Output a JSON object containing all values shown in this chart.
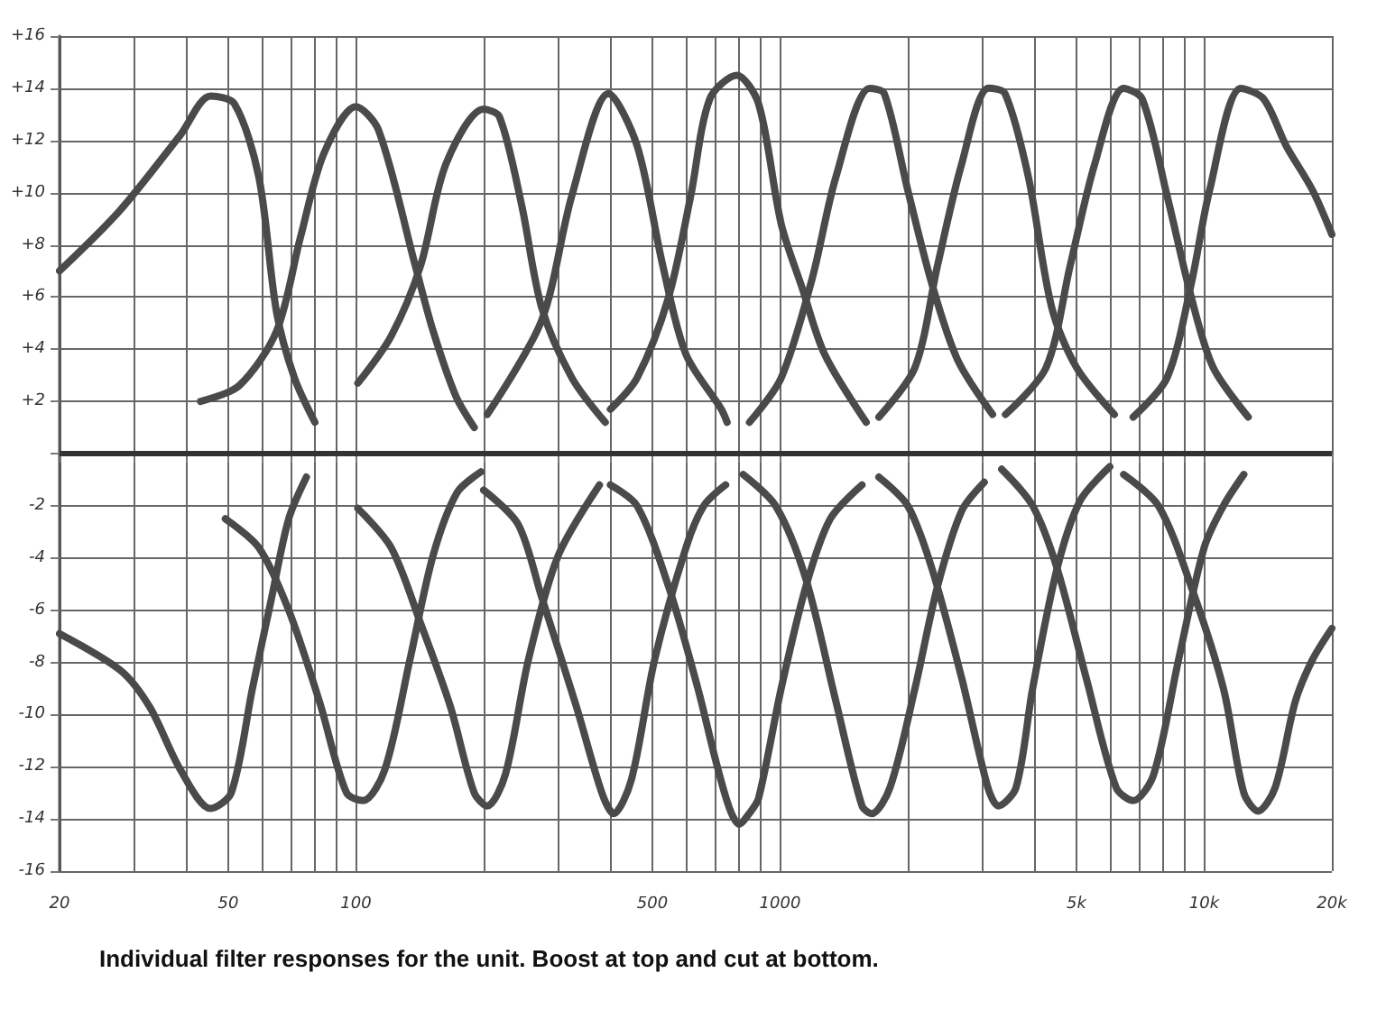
{
  "chart_data": {
    "type": "line",
    "annotations": [
      "Individual filter responses for the unit. Boost at top and cut at bottom."
    ],
    "xlim": [
      20,
      20000
    ],
    "ylim": [
      -16,
      16
    ],
    "log": "x",
    "grid": true,
    "marker": "none",
    "line_style": "solid",
    "xticks": [
      20,
      {
        "value": 30,
        "label": null
      },
      {
        "value": 40,
        "label": null
      },
      50,
      {
        "value": 60,
        "label": null
      },
      {
        "value": 70,
        "label": null
      },
      {
        "value": 80,
        "label": null
      },
      {
        "value": 90,
        "label": null
      },
      100,
      {
        "value": 200,
        "label": null
      },
      {
        "value": 300,
        "label": null
      },
      {
        "value": 400,
        "label": null
      },
      500,
      {
        "value": 600,
        "label": null
      },
      {
        "value": 700,
        "label": null
      },
      {
        "value": 800,
        "label": null
      },
      {
        "value": 900,
        "label": null
      },
      1000,
      {
        "value": 2000,
        "label": null
      },
      {
        "value": 3000,
        "label": null
      },
      {
        "value": 4000,
        "label": null
      },
      {
        "value": 5000,
        "label": "5k"
      },
      {
        "value": 6000,
        "label": null
      },
      {
        "value": 7000,
        "label": null
      },
      {
        "value": 8000,
        "label": null
      },
      {
        "value": 9000,
        "label": null
      },
      {
        "value": 10000,
        "label": "10k"
      },
      {
        "value": 20000,
        "label": "20k"
      }
    ],
    "yticks": [
      {
        "value": -16,
        "label": "-16"
      },
      -14,
      -12,
      -10,
      -8,
      -6,
      -4,
      -2,
      {
        "value": 0,
        "label": null
      },
      {
        "value": 2,
        "label": "+2"
      },
      {
        "value": 4,
        "label": "+4"
      },
      {
        "value": 6,
        "label": "+6"
      },
      {
        "value": 8,
        "label": "+8"
      },
      {
        "value": 10,
        "label": "+10"
      },
      {
        "value": 12,
        "label": "+12"
      },
      {
        "value": 14,
        "label": "+14"
      },
      {
        "value": 16,
        "label": "+16"
      }
    ],
    "ref_lines": [
      {
        "axis": "y",
        "value": 0,
        "label": null,
        "color": "#333333"
      }
    ],
    "series": [
      {
        "color": "#4a4a4a",
        "x": [
          20,
          27.7,
          38.5,
          45.4,
          51.7,
          59,
          65,
          71.6,
          80
        ],
        "values": [
          7.0,
          9.3,
          12.2,
          13.7,
          13.4,
          10.6,
          5.4,
          2.9,
          1.2
        ]
      },
      {
        "color": "#4a4a4a",
        "x": [
          43,
          53,
          65,
          74,
          84,
          100,
          113,
          138,
          152,
          172,
          190
        ],
        "values": [
          2.0,
          2.6,
          4.7,
          8.3,
          11.5,
          13.3,
          12.4,
          7.2,
          4.7,
          2.2,
          1.0
        ]
      },
      {
        "color": "#4a4a4a",
        "x": [
          101,
          121,
          142,
          163,
          200,
          218,
          246,
          274,
          323,
          387
        ],
        "values": [
          2.7,
          4.5,
          7.2,
          11.1,
          13.2,
          12.9,
          9.5,
          5.6,
          2.9,
          1.2
        ]
      },
      {
        "color": "#4a4a4a",
        "x": [
          204,
          274,
          323,
          394,
          460,
          529,
          600,
          727,
          750
        ],
        "values": [
          1.5,
          5.1,
          9.9,
          13.8,
          11.8,
          7.2,
          3.8,
          1.7,
          1.2
        ]
      },
      {
        "color": "#4a4a4a",
        "x": [
          398,
          460,
          546,
          616,
          683,
          790,
          890,
          1006,
          1130,
          1274,
          1596
        ],
        "values": [
          1.7,
          2.9,
          6.0,
          9.9,
          13.6,
          14.5,
          13.4,
          8.8,
          6.3,
          3.8,
          1.2
        ]
      },
      {
        "color": "#4a4a4a",
        "x": [
          847,
          1006,
          1190,
          1354,
          1626,
          1760,
          2000,
          2280,
          2620,
          3170
        ],
        "values": [
          1.2,
          2.9,
          6.7,
          10.6,
          14.0,
          13.8,
          10.1,
          6.5,
          3.6,
          1.5
        ]
      },
      {
        "color": "#4a4a4a",
        "x": [
          1710,
          2080,
          2350,
          2680,
          3100,
          3390,
          3850,
          4370,
          5000,
          6140
        ],
        "values": [
          1.4,
          3.3,
          7.2,
          11.1,
          14.0,
          13.8,
          10.6,
          5.6,
          3.3,
          1.5
        ]
      },
      {
        "color": "#4a4a4a",
        "x": [
          3400,
          4240,
          4830,
          5520,
          6460,
          7140,
          8170,
          9320,
          10500,
          12700
        ],
        "values": [
          1.5,
          3.3,
          7.2,
          11.1,
          14.0,
          13.6,
          9.9,
          6.0,
          3.3,
          1.4
        ]
      },
      {
        "color": "#4a4a4a",
        "x": [
          6800,
          8170,
          9320,
          10300,
          12200,
          13800,
          15600,
          18000,
          20000
        ],
        "values": [
          1.4,
          2.9,
          6.5,
          10.1,
          14.0,
          13.6,
          11.8,
          10.1,
          8.4
        ]
      },
      {
        "color": "#4a4a4a",
        "x": [
          20,
          27.8,
          32.6,
          38.5,
          45.4,
          50.8,
          57,
          63.3,
          69.4,
          76.4
        ],
        "values": [
          -6.9,
          -8.3,
          -9.7,
          -12.1,
          -13.6,
          -13.0,
          -9.0,
          -5.5,
          -2.5,
          -0.9
        ]
      },
      {
        "color": "#4a4a4a",
        "x": [
          49.2,
          59,
          69.4,
          82,
          95,
          104,
          117,
          134,
          152,
          173,
          197
        ],
        "values": [
          -2.5,
          -3.6,
          -6.0,
          -9.5,
          -13.0,
          -13.3,
          -12.1,
          -7.9,
          -3.9,
          -1.5,
          -0.7
        ]
      },
      {
        "color": "#4a4a4a",
        "x": [
          101,
          121,
          142,
          167,
          190,
          204,
          225,
          255,
          300,
          375
        ],
        "values": [
          -2.1,
          -3.6,
          -6.5,
          -9.7,
          -13.0,
          -13.5,
          -12.3,
          -7.9,
          -3.9,
          -1.2
        ]
      },
      {
        "color": "#4a4a4a",
        "x": [
          200,
          241,
          274,
          331,
          380,
          405,
          446,
          506,
          600,
          661,
          744
        ],
        "values": [
          -1.4,
          -2.7,
          -5.5,
          -9.7,
          -13.0,
          -13.8,
          -12.5,
          -7.9,
          -3.6,
          -2.0,
          -1.2
        ]
      },
      {
        "color": "#4a4a4a",
        "x": [
          398,
          460,
          546,
          640,
          706,
          760,
          801,
          845,
          890,
          1006,
          1150,
          1313,
          1560
        ],
        "values": [
          -1.2,
          -2.0,
          -5.1,
          -9.0,
          -11.8,
          -13.6,
          -14.2,
          -13.8,
          -13.2,
          -9.0,
          -5.1,
          -2.5,
          -1.2
        ]
      },
      {
        "color": "#4a4a4a",
        "x": [
          818,
          976,
          1150,
          1354,
          1560,
          1644,
          1816,
          2080,
          2350,
          2680,
          3030
        ],
        "values": [
          -0.8,
          -2.0,
          -4.8,
          -9.5,
          -13.5,
          -13.8,
          -12.8,
          -9.0,
          -5.1,
          -2.2,
          -1.1
        ]
      },
      {
        "color": "#4a4a4a",
        "x": [
          1710,
          2000,
          2280,
          2680,
          3090,
          3270,
          3600,
          3940,
          4500,
          5100,
          5990
        ],
        "values": [
          -0.9,
          -2.0,
          -4.4,
          -8.6,
          -12.8,
          -13.5,
          -12.8,
          -9.0,
          -4.4,
          -1.8,
          -0.5
        ]
      },
      {
        "color": "#4a4a4a",
        "x": [
          3330,
          3940,
          4500,
          5270,
          6200,
          6800,
          7600,
          8700,
          10000,
          11100,
          12400
        ],
        "values": [
          -0.6,
          -2.0,
          -4.4,
          -8.6,
          -12.8,
          -13.3,
          -12.3,
          -7.9,
          -3.6,
          -2.0,
          -0.8
        ]
      },
      {
        "color": "#4a4a4a",
        "x": [
          6460,
          7800,
          9320,
          11100,
          12400,
          13400,
          14700,
          16400,
          18000,
          20000
        ],
        "values": [
          -0.8,
          -2.0,
          -5.1,
          -9.0,
          -13.0,
          -13.7,
          -12.8,
          -9.5,
          -7.9,
          -6.7
        ]
      }
    ]
  }
}
